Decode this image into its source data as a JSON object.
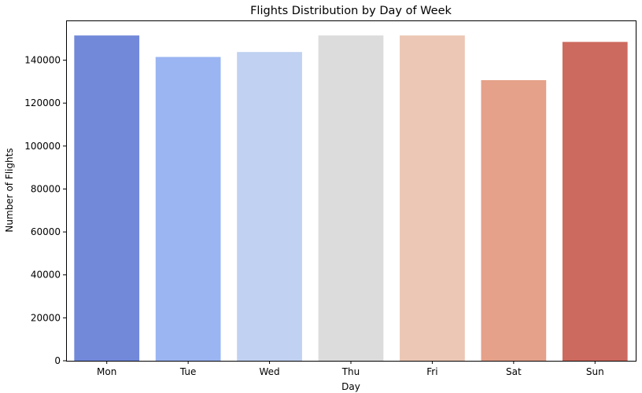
{
  "chart_data": {
    "type": "bar",
    "title": "Flights Distribution by Day of Week",
    "xlabel": "Day",
    "ylabel": "Number of Flights",
    "categories": [
      "Mon",
      "Tue",
      "Wed",
      "Thu",
      "Fri",
      "Sat",
      "Sun"
    ],
    "values": [
      151500,
      141500,
      143800,
      151500,
      151500,
      130700,
      148500
    ],
    "colors": [
      "#7289da",
      "#9bb5f2",
      "#c0d1f1",
      "#dcdcdc",
      "#ecc7b5",
      "#e5a189",
      "#cd6a5f"
    ],
    "ylim": [
      0,
      158500
    ],
    "yticks": [
      0,
      20000,
      40000,
      60000,
      80000,
      100000,
      120000,
      140000
    ],
    "grid": false,
    "legend": "none"
  }
}
